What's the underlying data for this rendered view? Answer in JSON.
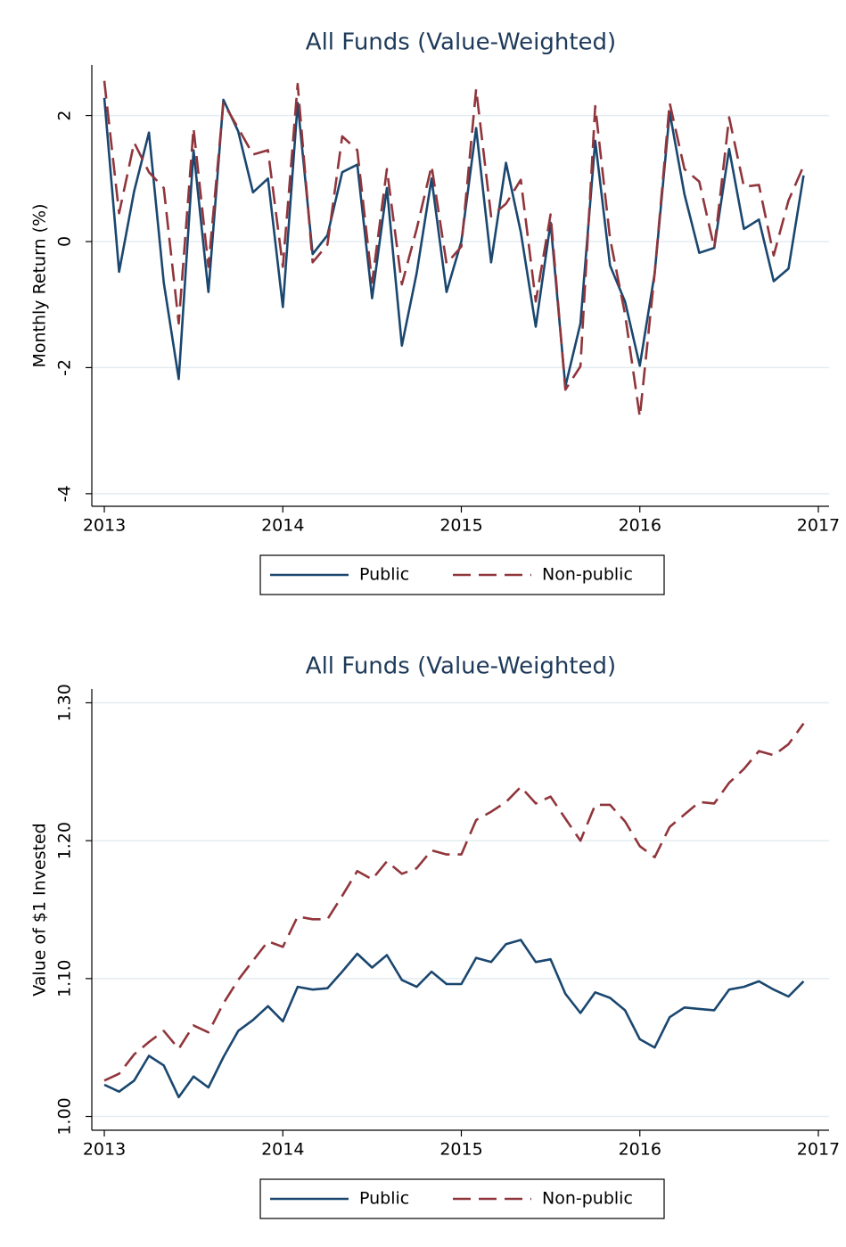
{
  "chart_data": [
    {
      "type": "line",
      "title": "All Funds (Value-Weighted)",
      "y_label": "Monthly Return (%)",
      "x": [
        2013,
        2013.083,
        2013.167,
        2013.25,
        2013.333,
        2013.417,
        2013.5,
        2013.583,
        2013.667,
        2013.75,
        2013.833,
        2013.917,
        2014,
        2014.083,
        2014.167,
        2014.25,
        2014.333,
        2014.417,
        2014.5,
        2014.583,
        2014.667,
        2014.75,
        2014.833,
        2014.917,
        2015,
        2015.083,
        2015.167,
        2015.25,
        2015.333,
        2015.417,
        2015.5,
        2015.583,
        2015.667,
        2015.75,
        2015.833,
        2015.917,
        2016,
        2016.083,
        2016.167,
        2016.25,
        2016.333,
        2016.417,
        2016.5,
        2016.583,
        2016.667,
        2016.75,
        2016.833,
        2016.917
      ],
      "series": [
        {
          "name": "Public",
          "color": "#1a476f",
          "dashed": false,
          "values": [
            2.28,
            -0.48,
            0.8,
            1.73,
            -0.65,
            -2.18,
            1.45,
            -0.8,
            2.25,
            1.75,
            0.78,
            1.0,
            -1.04,
            2.2,
            -0.2,
            0.1,
            1.1,
            1.22,
            -0.9,
            0.85,
            -1.65,
            -0.5,
            1.0,
            -0.8,
            0.0,
            1.8,
            -0.33,
            1.25,
            0.15,
            -1.35,
            0.3,
            -2.3,
            -1.3,
            1.6,
            -0.38,
            -0.95,
            -1.97,
            -0.5,
            2.05,
            0.75,
            -0.18,
            -0.1,
            1.47,
            0.2,
            0.35,
            -0.63,
            -0.43,
            1.05
          ]
        },
        {
          "name": "Non-public",
          "color": "#90353b",
          "dashed": true,
          "values": [
            2.55,
            0.45,
            1.57,
            1.1,
            0.85,
            -1.3,
            1.8,
            -0.4,
            2.2,
            1.8,
            1.38,
            1.45,
            -0.4,
            2.5,
            -0.33,
            -0.05,
            1.67,
            1.45,
            -0.65,
            1.15,
            -0.68,
            0.2,
            1.2,
            -0.35,
            -0.08,
            2.42,
            0.4,
            0.6,
            0.98,
            -0.95,
            0.43,
            -2.35,
            -1.98,
            2.15,
            0.05,
            -1.15,
            -2.78,
            -0.5,
            2.2,
            1.15,
            0.95,
            -0.1,
            1.97,
            0.87,
            0.9,
            -0.22,
            0.65,
            1.2
          ]
        }
      ],
      "xlim": [
        2012.93,
        2017.06
      ],
      "xticks": [
        2013,
        2014,
        2015,
        2016,
        2017
      ],
      "ylim": [
        -4.2,
        2.8
      ],
      "yticks": [
        -4,
        -2,
        0,
        2
      ],
      "grid": true,
      "legend": "bottom"
    },
    {
      "type": "line",
      "title": "All Funds (Value-Weighted)",
      "y_label": "Value of $1 Invested",
      "x": [
        2013,
        2013.083,
        2013.167,
        2013.25,
        2013.333,
        2013.417,
        2013.5,
        2013.583,
        2013.667,
        2013.75,
        2013.833,
        2013.917,
        2014,
        2014.083,
        2014.167,
        2014.25,
        2014.333,
        2014.417,
        2014.5,
        2014.583,
        2014.667,
        2014.75,
        2014.833,
        2014.917,
        2015,
        2015.083,
        2015.167,
        2015.25,
        2015.333,
        2015.417,
        2015.5,
        2015.583,
        2015.667,
        2015.75,
        2015.833,
        2015.917,
        2016,
        2016.083,
        2016.167,
        2016.25,
        2016.333,
        2016.417,
        2016.5,
        2016.583,
        2016.667,
        2016.75,
        2016.833,
        2016.917
      ],
      "series": [
        {
          "name": "Public",
          "color": "#1a476f",
          "dashed": false,
          "values": [
            1.023,
            1.018,
            1.026,
            1.044,
            1.037,
            1.014,
            1.029,
            1.021,
            1.043,
            1.062,
            1.07,
            1.08,
            1.069,
            1.094,
            1.092,
            1.093,
            1.105,
            1.118,
            1.108,
            1.117,
            1.099,
            1.094,
            1.105,
            1.096,
            1.096,
            1.115,
            1.112,
            1.125,
            1.128,
            1.112,
            1.114,
            1.089,
            1.075,
            1.09,
            1.086,
            1.077,
            1.056,
            1.05,
            1.072,
            1.079,
            1.078,
            1.077,
            1.092,
            1.094,
            1.098,
            1.092,
            1.087,
            1.098
          ]
        },
        {
          "name": "Non-public",
          "color": "#90353b",
          "dashed": true,
          "values": [
            1.026,
            1.031,
            1.045,
            1.054,
            1.062,
            1.049,
            1.066,
            1.061,
            1.082,
            1.099,
            1.113,
            1.127,
            1.123,
            1.145,
            1.143,
            1.143,
            1.16,
            1.178,
            1.172,
            1.185,
            1.176,
            1.18,
            1.193,
            1.19,
            1.19,
            1.215,
            1.221,
            1.228,
            1.239,
            1.227,
            1.232,
            1.216,
            1.2,
            1.226,
            1.226,
            1.214,
            1.196,
            1.188,
            1.21,
            1.219,
            1.228,
            1.227,
            1.242,
            1.252,
            1.265,
            1.262,
            1.27,
            1.285
          ]
        }
      ],
      "xlim": [
        2012.93,
        2017.06
      ],
      "xticks": [
        2013,
        2014,
        2015,
        2016,
        2017
      ],
      "ylim": [
        0.99,
        1.31
      ],
      "yticks": [
        {
          "value": 1.0,
          "label": "1.00"
        },
        {
          "value": 1.1,
          "label": "1.10"
        },
        {
          "value": 1.2,
          "label": "1.20"
        },
        {
          "value": 1.3,
          "label": "1.30"
        }
      ],
      "grid": true,
      "legend": "bottom"
    }
  ]
}
